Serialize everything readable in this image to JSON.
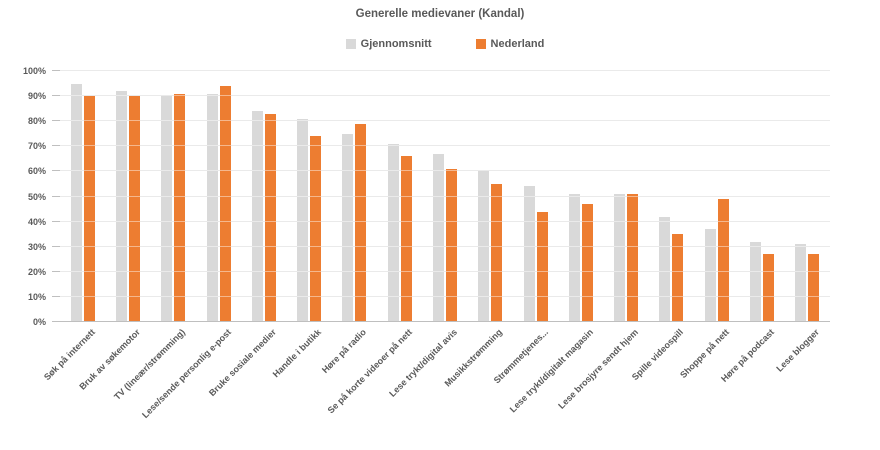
{
  "chart_title": "Generelle medievaner (Kandal)",
  "colors": {
    "gjennomsnitt_bar": "#d9d9d9",
    "nederland_bar": "#ed7d31",
    "text": "#595959",
    "gridline": "#d9d9d9",
    "axis_line": "#bfbfbf",
    "background": "#ffffff"
  },
  "chart_data": {
    "type": "bar",
    "title": "Generelle medievaner (Kandal)",
    "categories": [
      "Søk på internett",
      "Bruk av søkemotor",
      "TV (lineær/strømming)",
      "Lese/sende personlig e-post",
      "Bruke sosiale medier",
      "Handle i butikk",
      "Høre på radio",
      "Se på korte videoer på nett",
      "Lese trykt/digital avis",
      "Musikkstrømming",
      "Strømmetjenes...",
      "Lese trykt/digitalt magasin",
      "Lese brosjyre sendt hjem",
      "Spille videospill",
      "Shoppe på nett",
      "Høre på podcast",
      "Lese blogger"
    ],
    "series": [
      {
        "name": "Gjennomsnitt",
        "color": "#d9d9d9",
        "values": [
          95,
          92,
          90,
          91,
          84,
          81,
          75,
          71,
          67,
          60,
          54,
          51,
          51,
          42,
          37,
          32,
          31
        ]
      },
      {
        "name": "Nederland",
        "color": "#ed7d31",
        "values": [
          90,
          90,
          91,
          94,
          83,
          74,
          79,
          66,
          61,
          55,
          44,
          47,
          51,
          35,
          49,
          27,
          27
        ]
      }
    ],
    "xlabel": "",
    "ylabel": "",
    "ylim": [
      0,
      100
    ],
    "ytick_step": 10,
    "ytick_suffix": "%",
    "grid": true,
    "legend_position": "top"
  }
}
